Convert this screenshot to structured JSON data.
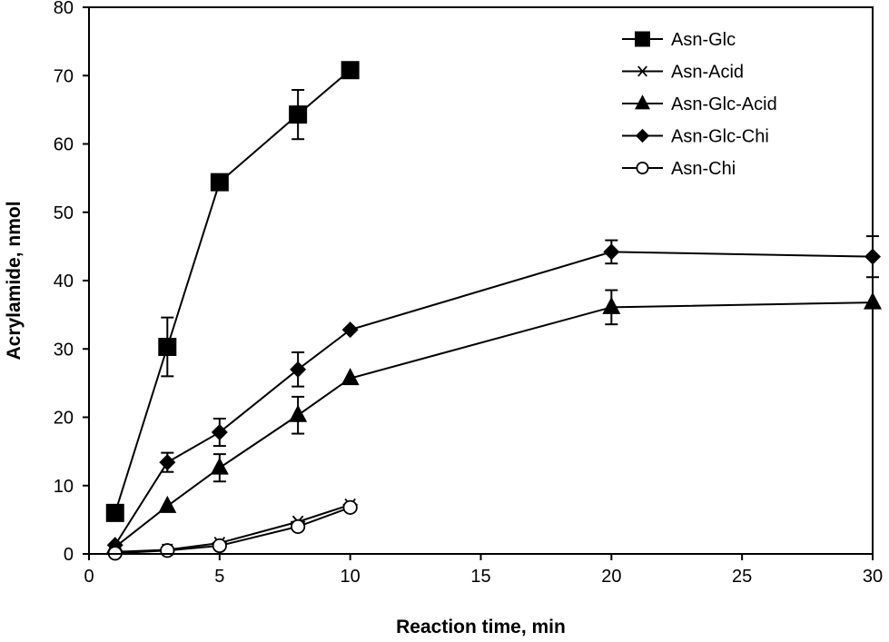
{
  "chart_data": {
    "type": "line",
    "title": "",
    "xlabel": "Reaction time, min",
    "ylabel": "Acrylamide, nmol",
    "xlim": [
      0,
      30
    ],
    "ylim": [
      0,
      80
    ],
    "xticks": [
      0,
      5,
      10,
      15,
      20,
      25,
      30
    ],
    "yticks": [
      0,
      10,
      20,
      30,
      40,
      50,
      60,
      70,
      80
    ],
    "grid": false,
    "legend_position": "top-right",
    "series": [
      {
        "name": "Asn-Glc",
        "marker": "square-filled",
        "x": [
          1,
          3,
          5,
          8,
          10
        ],
        "y": [
          6.0,
          30.3,
          54.4,
          64.3,
          70.8
        ],
        "err": [
          0,
          4.3,
          0,
          3.6,
          0
        ]
      },
      {
        "name": "Asn-Acid",
        "marker": "asterisk",
        "x": [
          1,
          3,
          5,
          8,
          10
        ],
        "y": [
          0.3,
          0.6,
          1.6,
          4.7,
          7.2
        ],
        "err": [
          0,
          0,
          0,
          0,
          0
        ]
      },
      {
        "name": "Asn-Glc-Acid",
        "marker": "triangle-filled",
        "x": [
          1,
          3,
          5,
          8,
          10,
          20,
          30
        ],
        "y": [
          1.0,
          7.0,
          12.6,
          20.3,
          25.7,
          36.1,
          36.8
        ],
        "err": [
          0,
          0,
          2.0,
          2.7,
          0,
          2.5,
          0
        ]
      },
      {
        "name": "Asn-Glc-Chi",
        "marker": "diamond-filled",
        "x": [
          1,
          3,
          5,
          8,
          10,
          20,
          30
        ],
        "y": [
          1.3,
          13.4,
          17.8,
          27.0,
          32.8,
          44.2,
          43.5
        ],
        "err": [
          0,
          1.4,
          2.0,
          2.5,
          0,
          1.7,
          3.0
        ]
      },
      {
        "name": "Asn-Chi",
        "marker": "circle-open",
        "x": [
          1,
          3,
          5,
          8,
          10
        ],
        "y": [
          0.1,
          0.5,
          1.2,
          4.0,
          6.8
        ],
        "err": [
          0,
          0,
          0,
          0,
          0
        ]
      }
    ]
  }
}
